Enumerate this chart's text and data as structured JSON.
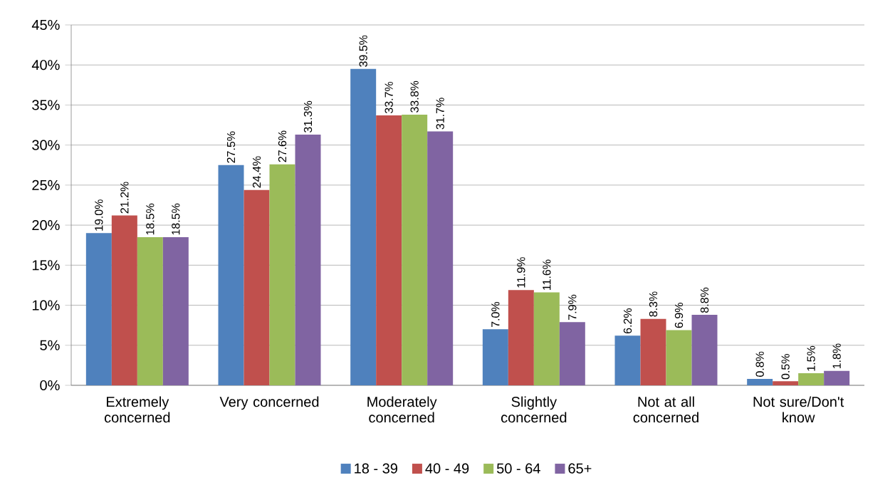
{
  "chart_data": {
    "type": "bar",
    "categories": [
      "Extremely concerned",
      "Very concerned",
      "Moderately concerned",
      "Slightly concerned",
      "Not at all concerned",
      "Not sure/Don't know"
    ],
    "series": [
      {
        "name": "18 - 39",
        "color": "#4f81bd",
        "values": [
          19.0,
          27.5,
          39.5,
          7.0,
          6.2,
          0.8
        ],
        "value_labels": [
          "19.0%",
          "27.5%",
          "39.5%",
          "7.0%",
          "6.2%",
          "0.8%"
        ]
      },
      {
        "name": "40 - 49",
        "color": "#c0504d",
        "values": [
          21.2,
          24.4,
          33.7,
          11.9,
          8.3,
          0.5
        ],
        "value_labels": [
          "21.2%",
          "24.4%",
          "33.7%",
          "11.9%",
          "8.3%",
          "0.5%"
        ]
      },
      {
        "name": "50 - 64",
        "color": "#9bbb59",
        "values": [
          18.5,
          27.6,
          33.8,
          11.6,
          6.9,
          1.5
        ],
        "value_labels": [
          "18.5%",
          "27.6%",
          "33.8%",
          "11.6%",
          "6.9%",
          "1.5%"
        ]
      },
      {
        "name": "65+",
        "color": "#8064a2",
        "values": [
          18.5,
          31.3,
          31.7,
          7.9,
          8.8,
          1.8
        ],
        "value_labels": [
          "18.5%",
          "31.3%",
          "31.7%",
          "7.9%",
          "8.8%",
          "1.8%"
        ]
      }
    ],
    "ylim": [
      0,
      45
    ],
    "yticks": [
      {
        "value": 0,
        "label": "0%"
      },
      {
        "value": 5,
        "label": "5%"
      },
      {
        "value": 10,
        "label": "10%"
      },
      {
        "value": 15,
        "label": "15%"
      },
      {
        "value": 20,
        "label": "20%"
      },
      {
        "value": 25,
        "label": "25%"
      },
      {
        "value": 30,
        "label": "30%"
      },
      {
        "value": 35,
        "label": "35%"
      },
      {
        "value": 40,
        "label": "40%"
      },
      {
        "value": 45,
        "label": "45%"
      }
    ],
    "grid": "y",
    "legend": "bottom"
  }
}
